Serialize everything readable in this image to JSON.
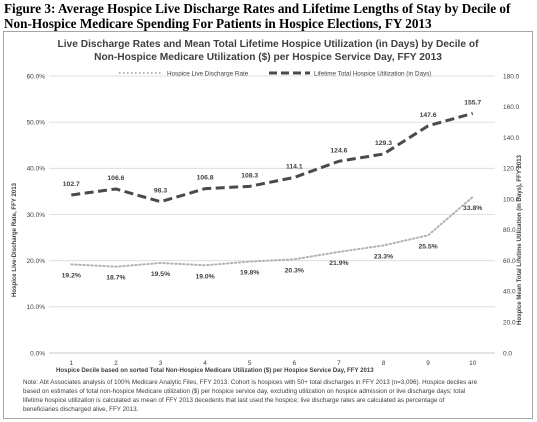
{
  "figure": {
    "title_line1": "Figure 3: Average Hospice Live Discharge Rates and Lifetime Lengths of Stay by Decile of",
    "title_line2": "Non-Hospice Medicare Spending For Patients in Hospice Elections, FY 2013"
  },
  "chart_data": {
    "type": "line",
    "title_line1": "Live Discharge Rates and Mean Total Lifetime Hospice Utilization (in Days) by Decile of",
    "title_line2": "Non-Hospice Medicare Utilization ($) per Hospice Service Day, FFY 2013",
    "categories": [
      "1",
      "2",
      "3",
      "4",
      "5",
      "6",
      "7",
      "8",
      "9",
      "10"
    ],
    "xlabel": "Hospice Decile based on sorted Total Non-Hospice Medicare Utilization ($) per Hospice Service Day, FFY 2013",
    "ylabel_left": "Hospice Live-Discharge Rate, FFY 2013",
    "ylabel_right": "Hospice Mean Total Lifetime Utilization (in Days), FFY 2013",
    "ylim_left": [
      0,
      60
    ],
    "yticks_left": [
      "0.0%",
      "10.0%",
      "20.0%",
      "30.0%",
      "40.0%",
      "50.0%",
      "60.0%"
    ],
    "ylim_right": [
      0,
      180
    ],
    "yticks_right": [
      "0.0",
      "20.0",
      "40.0",
      "60.0",
      "80.0",
      "100.0",
      "120.0",
      "140.0",
      "160.0",
      "180.0"
    ],
    "grid": true,
    "legend_position": "top",
    "series": [
      {
        "name": "Hospice Live Discharge Rate",
        "axis": "left",
        "style": "dotted",
        "color": "#b3b3b3",
        "values": [
          19.2,
          18.7,
          19.5,
          19.0,
          19.8,
          20.3,
          21.9,
          23.3,
          25.5,
          33.8
        ],
        "labels": [
          "19.2%",
          "18.7%",
          "19.5%",
          "19.0%",
          "19.8%",
          "20.3%",
          "21.9%",
          "23.3%",
          "25.5%",
          "33.8%"
        ]
      },
      {
        "name": "Lifetime Total Hospice Utilization (in Days)",
        "axis": "right",
        "style": "dashed",
        "color": "#4a4a4a",
        "values": [
          102.7,
          106.6,
          98.3,
          106.8,
          108.3,
          114.1,
          124.6,
          129.3,
          147.6,
          155.7
        ],
        "labels": [
          "102.7",
          "106.6",
          "98.3",
          "106.8",
          "108.3",
          "114.1",
          "124.6",
          "129.3",
          "147.6",
          "155.7"
        ]
      }
    ]
  },
  "note": {
    "line1": "Note: Abt Associates analysis of 100% Medicare Analytic Files, FFY 2013. Cohort is hospices with 50+ total discharges in FFY 2013 (n=3,096). Hospice deciles are",
    "line2": "based on estimates of total non-hospice Medicare utilization ($) per hospice service day, excluding utilization on hospice admission or live discharge days; total",
    "line3": "lifetime hospice utilization is calculated as mean of FFY 2013 decedents that last used the hospice; live discharge rates are calculated as percentage of",
    "line4": "beneficiaries discharged alive, FFY 2013."
  }
}
